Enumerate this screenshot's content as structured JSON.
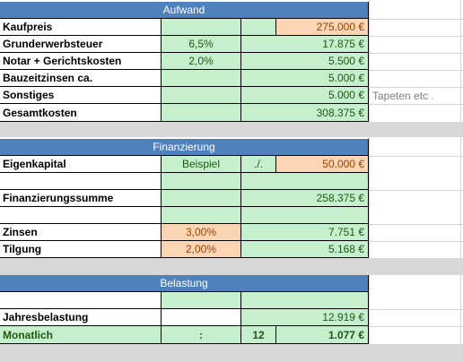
{
  "aufwand": {
    "header": "Aufwand",
    "kaufpreis": {
      "label": "Kaufpreis",
      "value": "275.000 €"
    },
    "grunderwerbsteuer": {
      "label": "Grunderwerbsteuer",
      "rate": "6,5%",
      "value": "17.875 €"
    },
    "notar": {
      "label": "Notar + Gerichtskosten",
      "rate": "2,0%",
      "value": "5.500 €"
    },
    "bauzeitzinsen": {
      "label": "Bauzeitzinsen ca.",
      "value": "5.000 €"
    },
    "sonstiges": {
      "label": "Sonstiges",
      "value": "5.000 €",
      "note": "Tapeten etc ."
    },
    "gesamtkosten": {
      "label": "Gesamtkosten",
      "value": "308.375 €"
    }
  },
  "finanzierung": {
    "header": "Finanzierung",
    "eigenkapital": {
      "label": "Eigenkapital",
      "example": "Beispiel",
      "op": "./.",
      "value": "50.000 €"
    },
    "finanzierungssumme": {
      "label": "Finanzierungssumme",
      "value": "258.375 €"
    },
    "zinsen": {
      "label": "Zinsen",
      "rate": "3,00%",
      "value": "7.751 €"
    },
    "tilgung": {
      "label": "Tilgung",
      "rate": "2,00%",
      "value": "5.168 €"
    }
  },
  "belastung": {
    "header": "Belastung",
    "jahresbelastung": {
      "label": "Jahresbelastung",
      "value": "12.919 €"
    },
    "monatlich": {
      "label": "Monatlich",
      "op": ":",
      "divisor": "12",
      "value": "1.077 €"
    }
  },
  "colors": {
    "header": "#4f81bd",
    "input_green": "#c6efce",
    "input_orange": "#fcd5b4",
    "separator_gray": "#d8d8d8"
  }
}
